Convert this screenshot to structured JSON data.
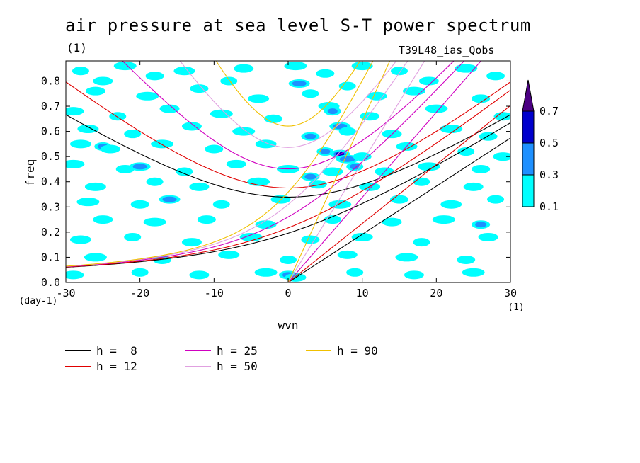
{
  "chart_data": {
    "type": "heatmap",
    "title": "air pressure at sea level S-T power spectrum",
    "subtitle_left": "(1)",
    "subtitle_right": "T39L48_ias_Qobs",
    "xlabel": "wvn",
    "x_unit": "(1)",
    "ylabel": "freq",
    "y_unit": "(day-1)",
    "xlim": [
      -30,
      30
    ],
    "ylim": [
      0,
      0.88
    ],
    "x_ticks": [
      -30,
      -20,
      -10,
      0,
      10,
      20,
      30
    ],
    "y_ticks": [
      0.0,
      0.1,
      0.2,
      0.3,
      0.4,
      0.5,
      0.6,
      0.7,
      0.8
    ],
    "x_tick_labels": [
      "-30",
      "-20",
      "-10",
      "0",
      "10",
      "20",
      "30"
    ],
    "y_tick_labels": [
      "0.0",
      "0.1",
      "0.2",
      "0.3",
      "0.4",
      "0.5",
      "0.6",
      "0.7",
      "0.8"
    ],
    "colorbar": {
      "levels": [
        "0.1",
        "0.3",
        "0.5",
        "0.7"
      ],
      "colors": [
        "#00ffff",
        "#1e90ff",
        "#0000cd",
        "#4b0082"
      ]
    },
    "dispersion_curves": [
      {
        "label": "h =  8",
        "h": 8,
        "color": "#000000"
      },
      {
        "label": "h = 12",
        "h": 12,
        "color": "#e00000"
      },
      {
        "label": "h = 25",
        "h": 25,
        "color": "#d000c0"
      },
      {
        "label": "h = 50",
        "h": 50,
        "color": "#e0a0e0"
      },
      {
        "label": "h = 90",
        "h": 90,
        "color": "#f0c000"
      }
    ],
    "spectrum_patches": [
      {
        "k": -28,
        "f": 0.84,
        "level": 0
      },
      {
        "k": -25,
        "f": 0.8,
        "level": 0
      },
      {
        "k": -22,
        "f": 0.86,
        "level": 0
      },
      {
        "k": -18,
        "f": 0.82,
        "level": 0
      },
      {
        "k": -14,
        "f": 0.84,
        "level": 0
      },
      {
        "k": -8,
        "f": 0.8,
        "level": 0
      },
      {
        "k": -6,
        "f": 0.85,
        "level": 0
      },
      {
        "k": 1,
        "f": 0.86,
        "level": 0
      },
      {
        "k": 5,
        "f": 0.83,
        "level": 0
      },
      {
        "k": 10,
        "f": 0.86,
        "level": 0
      },
      {
        "k": 15,
        "f": 0.84,
        "level": 0
      },
      {
        "k": 19,
        "f": 0.8,
        "level": 0
      },
      {
        "k": 24,
        "f": 0.85,
        "level": 0
      },
      {
        "k": 28,
        "f": 0.82,
        "level": 0
      },
      {
        "k": 1.5,
        "f": 0.79,
        "level": 1
      },
      {
        "k": 8,
        "f": 0.78,
        "level": 0
      },
      {
        "k": -26,
        "f": 0.76,
        "level": 0
      },
      {
        "k": -19,
        "f": 0.74,
        "level": 0
      },
      {
        "k": -12,
        "f": 0.77,
        "level": 0
      },
      {
        "k": -4,
        "f": 0.73,
        "level": 0
      },
      {
        "k": 3,
        "f": 0.75,
        "level": 0
      },
      {
        "k": 12,
        "f": 0.74,
        "level": 0
      },
      {
        "k": 17,
        "f": 0.76,
        "level": 0
      },
      {
        "k": 26,
        "f": 0.73,
        "level": 0
      },
      {
        "k": -29,
        "f": 0.68,
        "level": 0
      },
      {
        "k": -23,
        "f": 0.66,
        "level": 0
      },
      {
        "k": -16,
        "f": 0.69,
        "level": 0
      },
      {
        "k": -9,
        "f": 0.67,
        "level": 0
      },
      {
        "k": -2,
        "f": 0.65,
        "level": 0
      },
      {
        "k": 5.5,
        "f": 0.7,
        "level": 0
      },
      {
        "k": 6,
        "f": 0.68,
        "level": 1
      },
      {
        "k": 11,
        "f": 0.66,
        "level": 0
      },
      {
        "k": 20,
        "f": 0.69,
        "level": 0
      },
      {
        "k": 29,
        "f": 0.66,
        "level": 0
      },
      {
        "k": -27,
        "f": 0.61,
        "level": 0
      },
      {
        "k": -21,
        "f": 0.59,
        "level": 0
      },
      {
        "k": -13,
        "f": 0.62,
        "level": 0
      },
      {
        "k": -6,
        "f": 0.6,
        "level": 0
      },
      {
        "k": 3,
        "f": 0.58,
        "level": 1
      },
      {
        "k": 7,
        "f": 0.62,
        "level": 1
      },
      {
        "k": 8,
        "f": 0.6,
        "level": 0
      },
      {
        "k": 14,
        "f": 0.59,
        "level": 0
      },
      {
        "k": 22,
        "f": 0.61,
        "level": 0
      },
      {
        "k": 27,
        "f": 0.58,
        "level": 0
      },
      {
        "k": -28,
        "f": 0.55,
        "level": 0
      },
      {
        "k": -25,
        "f": 0.54,
        "level": 1
      },
      {
        "k": -24,
        "f": 0.53,
        "level": 0
      },
      {
        "k": -17,
        "f": 0.55,
        "level": 0
      },
      {
        "k": -10,
        "f": 0.53,
        "level": 0
      },
      {
        "k": -3,
        "f": 0.55,
        "level": 0
      },
      {
        "k": 5,
        "f": 0.52,
        "level": 1
      },
      {
        "k": 7,
        "f": 0.51,
        "level": 2
      },
      {
        "k": 8,
        "f": 0.49,
        "level": 1
      },
      {
        "k": 10,
        "f": 0.5,
        "level": 0
      },
      {
        "k": 16,
        "f": 0.54,
        "level": 0
      },
      {
        "k": 24,
        "f": 0.52,
        "level": 0
      },
      {
        "k": 29,
        "f": 0.5,
        "level": 0
      },
      {
        "k": -29,
        "f": 0.47,
        "level": 0
      },
      {
        "k": -22,
        "f": 0.45,
        "level": 0
      },
      {
        "k": -20,
        "f": 0.46,
        "level": 1
      },
      {
        "k": -14,
        "f": 0.44,
        "level": 0
      },
      {
        "k": -7,
        "f": 0.47,
        "level": 0
      },
      {
        "k": 0,
        "f": 0.45,
        "level": 0
      },
      {
        "k": 3,
        "f": 0.42,
        "level": 1
      },
      {
        "k": 6,
        "f": 0.44,
        "level": 0
      },
      {
        "k": 9,
        "f": 0.46,
        "level": 1
      },
      {
        "k": 13,
        "f": 0.44,
        "level": 0
      },
      {
        "k": 19,
        "f": 0.46,
        "level": 0
      },
      {
        "k": 26,
        "f": 0.45,
        "level": 0
      },
      {
        "k": -26,
        "f": 0.38,
        "level": 0
      },
      {
        "k": -18,
        "f": 0.4,
        "level": 0
      },
      {
        "k": -12,
        "f": 0.38,
        "level": 0
      },
      {
        "k": -4,
        "f": 0.4,
        "level": 0
      },
      {
        "k": 4,
        "f": 0.39,
        "level": 0
      },
      {
        "k": 11,
        "f": 0.38,
        "level": 0
      },
      {
        "k": 18,
        "f": 0.4,
        "level": 0
      },
      {
        "k": 25,
        "f": 0.38,
        "level": 0
      },
      {
        "k": -27,
        "f": 0.32,
        "level": 0
      },
      {
        "k": -20,
        "f": 0.31,
        "level": 0
      },
      {
        "k": -16,
        "f": 0.33,
        "level": 1
      },
      {
        "k": -9,
        "f": 0.31,
        "level": 0
      },
      {
        "k": -1,
        "f": 0.33,
        "level": 0
      },
      {
        "k": 7,
        "f": 0.31,
        "level": 0
      },
      {
        "k": 15,
        "f": 0.33,
        "level": 0
      },
      {
        "k": 22,
        "f": 0.31,
        "level": 0
      },
      {
        "k": 28,
        "f": 0.33,
        "level": 0
      },
      {
        "k": -25,
        "f": 0.25,
        "level": 0
      },
      {
        "k": -18,
        "f": 0.24,
        "level": 0
      },
      {
        "k": -11,
        "f": 0.25,
        "level": 0
      },
      {
        "k": -3,
        "f": 0.23,
        "level": 0
      },
      {
        "k": 6,
        "f": 0.25,
        "level": 0
      },
      {
        "k": 14,
        "f": 0.24,
        "level": 0
      },
      {
        "k": 21,
        "f": 0.25,
        "level": 0
      },
      {
        "k": 26,
        "f": 0.23,
        "level": 1
      },
      {
        "k": -28,
        "f": 0.17,
        "level": 0
      },
      {
        "k": -21,
        "f": 0.18,
        "level": 0
      },
      {
        "k": -13,
        "f": 0.16,
        "level": 0
      },
      {
        "k": -5,
        "f": 0.18,
        "level": 0
      },
      {
        "k": 3,
        "f": 0.17,
        "level": 0
      },
      {
        "k": 10,
        "f": 0.18,
        "level": 0
      },
      {
        "k": 18,
        "f": 0.16,
        "level": 0
      },
      {
        "k": 27,
        "f": 0.18,
        "level": 0
      },
      {
        "k": -26,
        "f": 0.1,
        "level": 0
      },
      {
        "k": -17,
        "f": 0.09,
        "level": 0
      },
      {
        "k": -8,
        "f": 0.11,
        "level": 0
      },
      {
        "k": 0,
        "f": 0.09,
        "level": 0
      },
      {
        "k": 8,
        "f": 0.11,
        "level": 0
      },
      {
        "k": 16,
        "f": 0.1,
        "level": 0
      },
      {
        "k": 24,
        "f": 0.09,
        "level": 0
      },
      {
        "k": -29,
        "f": 0.03,
        "level": 0
      },
      {
        "k": -20,
        "f": 0.04,
        "level": 0
      },
      {
        "k": -12,
        "f": 0.03,
        "level": 0
      },
      {
        "k": -3,
        "f": 0.04,
        "level": 0
      },
      {
        "k": 0,
        "f": 0.03,
        "level": 1
      },
      {
        "k": 1,
        "f": 0.02,
        "level": 0
      },
      {
        "k": 9,
        "f": 0.04,
        "level": 0
      },
      {
        "k": 17,
        "f": 0.03,
        "level": 0
      },
      {
        "k": 25,
        "f": 0.04,
        "level": 0
      }
    ]
  },
  "legend": [
    {
      "label": "h =  8",
      "color": "#000000"
    },
    {
      "label": "h = 12",
      "color": "#e00000"
    },
    {
      "label": "h = 25",
      "color": "#d000c0"
    },
    {
      "label": "h = 50",
      "color": "#e0a0e0"
    },
    {
      "label": "h = 90",
      "color": "#f0c000"
    }
  ]
}
